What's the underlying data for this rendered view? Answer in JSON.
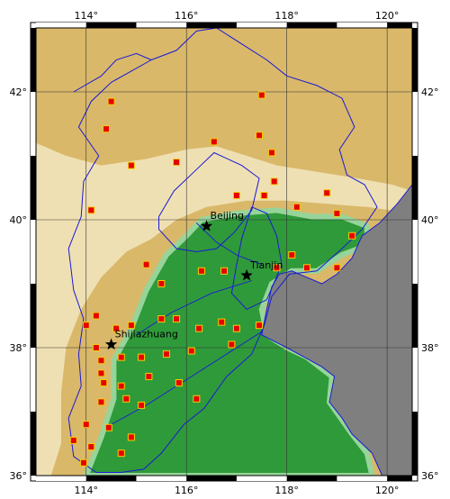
{
  "map": {
    "lon_range": [
      113,
      120.5
    ],
    "lat_range": [
      36,
      43
    ],
    "lon_ticks": [
      {
        "value": 114,
        "label": "114°"
      },
      {
        "value": 116,
        "label": "116°"
      },
      {
        "value": 118,
        "label": "118°"
      },
      {
        "value": 120,
        "label": "120°"
      }
    ],
    "lat_ticks": [
      {
        "value": 36,
        "label": "36°"
      },
      {
        "value": 38,
        "label": "38°"
      },
      {
        "value": 40,
        "label": "40°"
      },
      {
        "value": 42,
        "label": "42°"
      }
    ],
    "colors": {
      "highland": "#d9b86a",
      "plateau": "#efe0b3",
      "lowland": "#2f9a3a",
      "mid": "#97d49a",
      "sea": "#7f7f7f",
      "border": "#1a1ad6",
      "station_fill": "#e60000",
      "station_stroke": "#f2d000"
    },
    "cities": [
      {
        "name": "Beijing",
        "lon": 116.4,
        "lat": 39.9
      },
      {
        "name": "Tianjin",
        "lon": 117.2,
        "lat": 39.13
      },
      {
        "name": "Shijiazhuang",
        "lon": 114.5,
        "lat": 38.05
      }
    ],
    "stations": [
      [
        114.5,
        41.85
      ],
      [
        117.5,
        41.95
      ],
      [
        114.4,
        41.42
      ],
      [
        116.55,
        41.22
      ],
      [
        117.45,
        41.32
      ],
      [
        117.7,
        41.05
      ],
      [
        114.9,
        40.85
      ],
      [
        115.8,
        40.9
      ],
      [
        117.75,
        40.6
      ],
      [
        118.8,
        40.42
      ],
      [
        117.0,
        40.38
      ],
      [
        117.55,
        40.38
      ],
      [
        118.2,
        40.2
      ],
      [
        118.1,
        39.45
      ],
      [
        114.1,
        40.15
      ],
      [
        116.75,
        39.2
      ],
      [
        119.0,
        40.1
      ],
      [
        115.2,
        39.3
      ],
      [
        115.5,
        39.0
      ],
      [
        116.3,
        39.2
      ],
      [
        117.8,
        39.25
      ],
      [
        118.4,
        39.25
      ],
      [
        119.0,
        39.25
      ],
      [
        119.3,
        39.75
      ],
      [
        114.2,
        38.5
      ],
      [
        114.6,
        38.3
      ],
      [
        114.9,
        38.35
      ],
      [
        115.5,
        38.45
      ],
      [
        115.8,
        38.45
      ],
      [
        116.25,
        38.3
      ],
      [
        116.7,
        38.4
      ],
      [
        117.0,
        38.3
      ],
      [
        117.45,
        38.35
      ],
      [
        114.0,
        38.35
      ],
      [
        114.2,
        38.0
      ],
      [
        114.3,
        37.8
      ],
      [
        114.7,
        37.85
      ],
      [
        115.1,
        37.85
      ],
      [
        115.6,
        37.9
      ],
      [
        116.1,
        37.95
      ],
      [
        116.9,
        38.05
      ],
      [
        114.3,
        37.6
      ],
      [
        114.35,
        37.45
      ],
      [
        114.7,
        37.4
      ],
      [
        115.25,
        37.55
      ],
      [
        115.85,
        37.45
      ],
      [
        116.2,
        37.2
      ],
      [
        114.3,
        37.15
      ],
      [
        114.8,
        37.2
      ],
      [
        115.1,
        37.1
      ],
      [
        114.0,
        36.8
      ],
      [
        114.45,
        36.75
      ],
      [
        114.9,
        36.6
      ],
      [
        113.75,
        36.55
      ],
      [
        114.1,
        36.45
      ],
      [
        114.7,
        36.35
      ],
      [
        113.95,
        36.2
      ]
    ],
    "coast": [
      [
        117.5,
        38.2
      ],
      [
        117.6,
        38.6
      ],
      [
        117.7,
        38.95
      ],
      [
        117.85,
        39.15
      ],
      [
        118.1,
        39.2
      ],
      [
        118.4,
        39.1
      ],
      [
        118.7,
        39.0
      ],
      [
        119.0,
        39.15
      ],
      [
        119.3,
        39.4
      ],
      [
        119.5,
        39.75
      ],
      [
        119.85,
        39.95
      ],
      [
        120.2,
        40.25
      ],
      [
        120.5,
        40.55
      ],
      [
        120.5,
        36.0
      ],
      [
        119.9,
        36.0
      ],
      [
        119.7,
        36.35
      ],
      [
        119.3,
        36.65
      ],
      [
        119.1,
        36.9
      ],
      [
        118.85,
        37.15
      ],
      [
        118.9,
        37.35
      ],
      [
        118.95,
        37.55
      ],
      [
        118.7,
        37.7
      ],
      [
        118.35,
        37.85
      ],
      [
        118.0,
        38.0
      ]
    ],
    "hebei_border": [
      [
        115.3,
        42.5
      ],
      [
        115.8,
        42.65
      ],
      [
        116.2,
        42.95
      ],
      [
        116.6,
        43.0
      ],
      [
        117.2,
        42.7
      ],
      [
        117.6,
        42.5
      ],
      [
        118.0,
        42.25
      ],
      [
        118.6,
        42.1
      ],
      [
        119.1,
        41.9
      ],
      [
        119.35,
        41.45
      ],
      [
        119.05,
        41.1
      ],
      [
        119.2,
        40.7
      ],
      [
        119.55,
        40.55
      ],
      [
        119.8,
        40.2
      ],
      [
        119.5,
        39.85
      ],
      [
        119.1,
        39.55
      ],
      [
        118.6,
        39.2
      ],
      [
        118.05,
        39.15
      ],
      [
        117.7,
        38.8
      ],
      [
        117.55,
        38.35
      ],
      [
        117.3,
        37.9
      ],
      [
        116.8,
        37.55
      ],
      [
        116.35,
        37.05
      ],
      [
        115.95,
        36.8
      ],
      [
        115.5,
        36.35
      ],
      [
        115.15,
        36.1
      ],
      [
        114.7,
        36.05
      ],
      [
        114.2,
        36.05
      ],
      [
        113.75,
        36.3
      ],
      [
        113.65,
        36.9
      ],
      [
        113.9,
        37.4
      ],
      [
        113.85,
        37.9
      ],
      [
        113.95,
        38.45
      ],
      [
        113.75,
        38.9
      ],
      [
        113.65,
        39.55
      ],
      [
        113.9,
        40.05
      ],
      [
        113.95,
        40.6
      ],
      [
        114.25,
        41.0
      ],
      [
        113.85,
        41.45
      ],
      [
        114.1,
        41.85
      ],
      [
        114.5,
        42.15
      ],
      [
        115.3,
        42.5
      ]
    ],
    "beijing_border": [
      [
        115.45,
        40.05
      ],
      [
        115.75,
        40.45
      ],
      [
        116.15,
        40.75
      ],
      [
        116.55,
        41.05
      ],
      [
        117.1,
        40.85
      ],
      [
        117.45,
        40.65
      ],
      [
        117.3,
        40.15
      ],
      [
        116.95,
        39.8
      ],
      [
        116.6,
        39.55
      ],
      [
        116.2,
        39.5
      ],
      [
        115.8,
        39.55
      ],
      [
        115.45,
        39.85
      ],
      [
        115.45,
        40.05
      ]
    ],
    "tianjin_border": [
      [
        117.3,
        40.2
      ],
      [
        117.6,
        40.1
      ],
      [
        117.8,
        39.75
      ],
      [
        117.9,
        39.3
      ],
      [
        117.6,
        38.75
      ],
      [
        117.2,
        38.6
      ],
      [
        116.9,
        38.85
      ],
      [
        117.0,
        39.3
      ],
      [
        117.1,
        39.7
      ],
      [
        117.3,
        40.2
      ]
    ],
    "inner_border": [
      [
        113.75,
        42.0
      ],
      [
        114.3,
        42.25
      ],
      [
        114.6,
        42.5
      ],
      [
        115.0,
        42.6
      ],
      [
        115.3,
        42.5
      ]
    ],
    "lowland_outline": [
      [
        114.0,
        36.0
      ],
      [
        114.3,
        36.6
      ],
      [
        114.55,
        37.2
      ],
      [
        114.55,
        37.8
      ],
      [
        114.9,
        38.3
      ],
      [
        115.2,
        38.9
      ],
      [
        115.6,
        39.45
      ],
      [
        116.0,
        39.75
      ],
      [
        116.3,
        40.0
      ],
      [
        117.0,
        40.1
      ],
      [
        117.8,
        40.15
      ],
      [
        118.5,
        40.05
      ],
      [
        119.1,
        40.05
      ],
      [
        119.6,
        39.9
      ],
      [
        119.6,
        39.6
      ],
      [
        119.1,
        39.45
      ],
      [
        118.6,
        39.2
      ],
      [
        118.1,
        39.2
      ],
      [
        117.7,
        39.0
      ],
      [
        117.5,
        38.6
      ],
      [
        117.6,
        38.2
      ],
      [
        118.0,
        38.0
      ],
      [
        118.4,
        37.85
      ],
      [
        118.9,
        37.55
      ],
      [
        118.85,
        37.15
      ],
      [
        119.3,
        36.65
      ],
      [
        119.6,
        36.35
      ],
      [
        119.7,
        36.0
      ],
      [
        114.0,
        36.0
      ]
    ],
    "plateau_outline": [
      [
        113.0,
        41.2
      ],
      [
        113.6,
        41.0
      ],
      [
        114.3,
        40.85
      ],
      [
        115.2,
        40.95
      ],
      [
        116.0,
        41.1
      ],
      [
        116.6,
        41.15
      ],
      [
        117.2,
        41.0
      ],
      [
        117.8,
        40.85
      ],
      [
        118.6,
        40.75
      ],
      [
        119.4,
        40.65
      ],
      [
        120.1,
        40.55
      ],
      [
        120.5,
        40.45
      ],
      [
        120.5,
        40.1
      ],
      [
        119.6,
        40.2
      ],
      [
        118.8,
        40.25
      ],
      [
        118.0,
        40.3
      ],
      [
        117.2,
        40.3
      ],
      [
        116.4,
        40.2
      ],
      [
        115.8,
        40.0
      ],
      [
        115.3,
        39.7
      ],
      [
        114.8,
        39.5
      ],
      [
        114.3,
        39.1
      ],
      [
        113.9,
        38.6
      ],
      [
        113.6,
        38.0
      ],
      [
        113.5,
        37.3
      ],
      [
        113.5,
        36.5
      ],
      [
        113.3,
        36.0
      ],
      [
        113.0,
        36.0
      ]
    ],
    "rivers": [
      [
        [
          114.5,
          36.8
        ],
        [
          115.2,
          37.1
        ],
        [
          116.0,
          37.5
        ],
        [
          116.8,
          37.9
        ],
        [
          117.5,
          38.25
        ]
      ],
      [
        [
          115.0,
          38.2
        ],
        [
          115.7,
          38.55
        ],
        [
          116.5,
          38.85
        ],
        [
          117.3,
          39.05
        ]
      ],
      [
        [
          116.2,
          39.95
        ],
        [
          116.6,
          39.65
        ],
        [
          117.0,
          39.45
        ],
        [
          117.5,
          39.3
        ]
      ]
    ]
  }
}
